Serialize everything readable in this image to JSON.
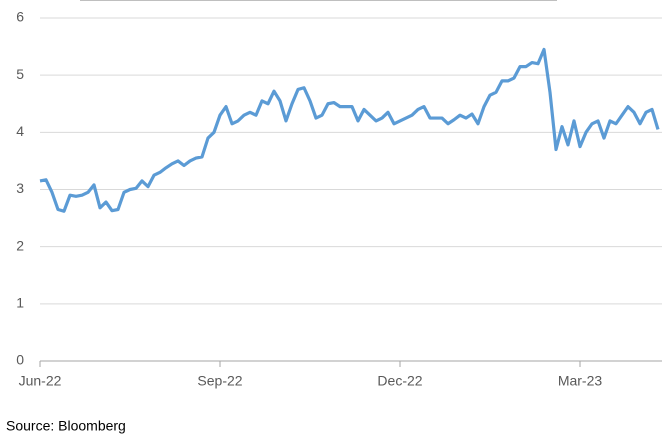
{
  "chart_data": {
    "type": "line",
    "source": "Source: Bloomberg",
    "color": "#5b9bd5",
    "categories": [
      "Jun-22",
      null,
      null,
      null,
      null,
      null,
      null,
      null,
      null,
      null,
      null,
      null,
      null,
      null,
      null,
      null,
      null,
      null,
      null,
      null,
      null,
      null,
      null,
      null,
      null,
      null,
      null,
      null,
      null,
      null,
      "Sep-22",
      null,
      null,
      null,
      null,
      null,
      null,
      null,
      null,
      null,
      null,
      null,
      null,
      null,
      null,
      null,
      null,
      null,
      null,
      null,
      null,
      null,
      null,
      null,
      null,
      null,
      null,
      null,
      null,
      null,
      "Dec-22",
      null,
      null,
      null,
      null,
      null,
      null,
      null,
      null,
      null,
      null,
      null,
      null,
      null,
      null,
      null,
      null,
      null,
      null,
      null,
      null,
      null,
      null,
      null,
      null,
      null,
      null,
      null,
      null,
      null,
      "Mar-23",
      null,
      null,
      null,
      null,
      null,
      null,
      null,
      null,
      null,
      null,
      null,
      null,
      null
    ],
    "values": [
      3.15,
      3.17,
      2.95,
      2.65,
      2.62,
      2.9,
      2.88,
      2.9,
      2.95,
      3.08,
      2.68,
      2.78,
      2.63,
      2.65,
      2.95,
      3.0,
      3.02,
      3.15,
      3.05,
      3.25,
      3.3,
      3.38,
      3.45,
      3.5,
      3.42,
      3.5,
      3.55,
      3.57,
      3.9,
      4.0,
      4.3,
      4.45,
      4.15,
      4.2,
      4.3,
      4.35,
      4.3,
      4.55,
      4.5,
      4.72,
      4.55,
      4.2,
      4.5,
      4.75,
      4.78,
      4.55,
      4.25,
      4.3,
      4.5,
      4.52,
      4.45,
      4.45,
      4.45,
      4.2,
      4.4,
      4.3,
      4.2,
      4.25,
      4.35,
      4.15,
      4.2,
      4.25,
      4.3,
      4.4,
      4.45,
      4.25,
      4.25,
      4.25,
      4.15,
      4.22,
      4.3,
      4.25,
      4.32,
      4.15,
      4.45,
      4.65,
      4.7,
      4.9,
      4.9,
      4.95,
      5.15,
      5.15,
      5.22,
      5.2,
      5.45,
      4.7,
      3.7,
      4.1,
      3.78,
      4.2,
      3.75,
      4.0,
      4.15,
      4.2,
      3.9,
      4.2,
      4.15,
      4.3,
      4.45,
      4.35,
      4.15,
      4.35,
      4.4,
      4.05
    ],
    "ylim": [
      0,
      6
    ],
    "yticks": [
      0,
      1,
      2,
      3,
      4,
      5,
      6
    ],
    "grid": true
  }
}
